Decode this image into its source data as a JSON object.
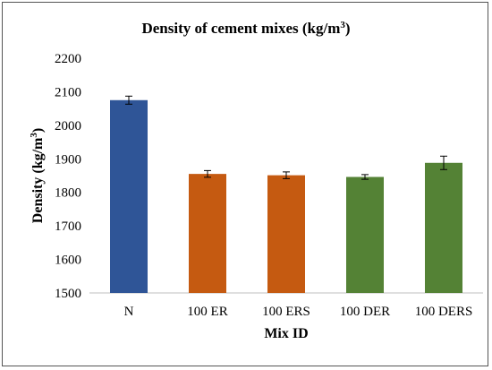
{
  "chart_data": {
    "type": "bar",
    "title": "Density of cement mixes (kg/m",
    "title_sup": "3",
    "title_suffix": ")",
    "xlabel": "Mix ID",
    "ylabel": "Density (kg/m",
    "ylabel_sup": "3",
    "ylabel_suffix": ")",
    "categories": [
      "N",
      "100 ER",
      "100 ERS",
      "100 DER",
      "100 DERS"
    ],
    "values": [
      2075,
      1855,
      1851,
      1846,
      1888
    ],
    "errors": [
      12,
      10,
      10,
      7,
      20
    ],
    "colors": [
      "#2F5597",
      "#C55A11",
      "#C55A11",
      "#548235",
      "#548235"
    ],
    "ylim": [
      1500,
      2200
    ],
    "yticks": [
      1500,
      1600,
      1700,
      1800,
      1900,
      2000,
      2100,
      2200
    ],
    "grid": false,
    "legend": "none"
  }
}
